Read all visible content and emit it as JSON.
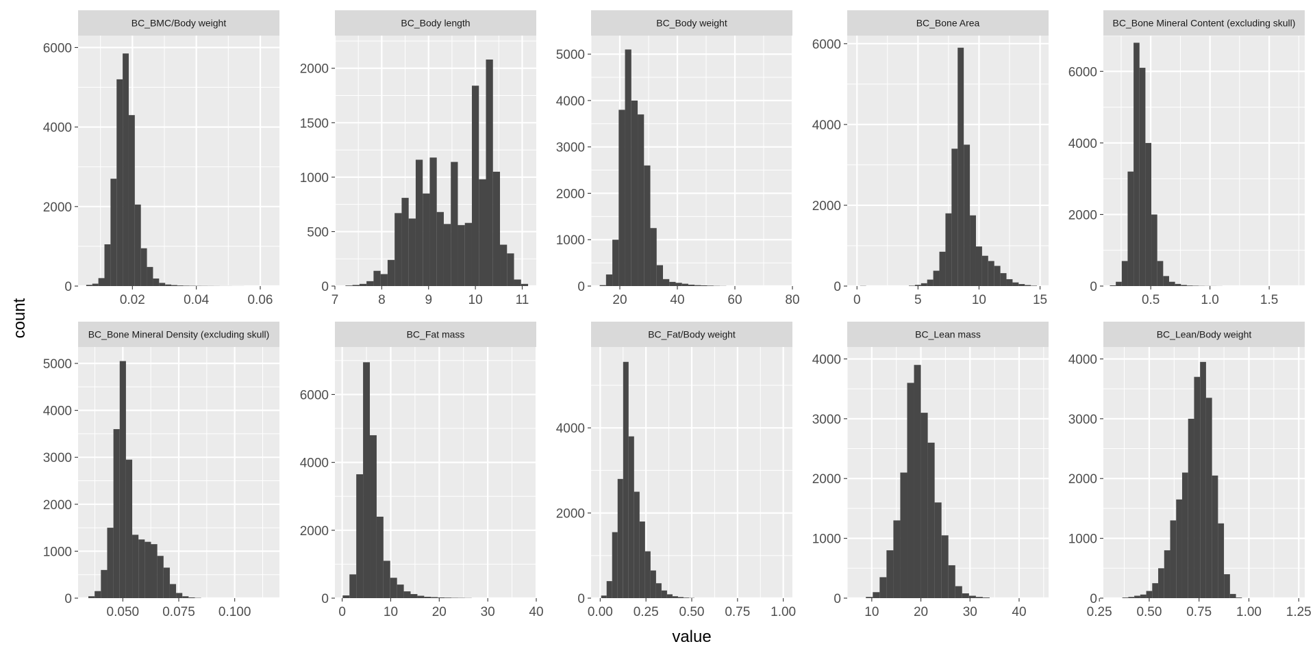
{
  "chart_data": {
    "type": "bar",
    "xlabel": "value",
    "ylabel": "count",
    "grid": true,
    "panels": [
      {
        "title": "BC_BMC/Body weight",
        "xlim": [
          0.003,
          0.066
        ],
        "ylim": [
          0,
          6300
        ],
        "xticks": [
          0.02,
          0.04,
          0.06
        ],
        "xtick_labels": [
          "0.02",
          "0.04",
          "0.06"
        ],
        "yticks": [
          0,
          2000,
          4000,
          6000
        ],
        "ytick_labels": [
          "0",
          "2000",
          "4000",
          "6000"
        ],
        "bins": [
          [
            0.0065,
            30
          ],
          [
            0.0084,
            60
          ],
          [
            0.0103,
            200
          ],
          [
            0.0122,
            1050
          ],
          [
            0.0141,
            2700
          ],
          [
            0.016,
            5200
          ],
          [
            0.0179,
            5850
          ],
          [
            0.0198,
            4300
          ],
          [
            0.0217,
            2050
          ],
          [
            0.0236,
            950
          ],
          [
            0.0255,
            480
          ],
          [
            0.0274,
            190
          ],
          [
            0.0293,
            80
          ],
          [
            0.0312,
            40
          ],
          [
            0.0331,
            25
          ],
          [
            0.035,
            15
          ],
          [
            0.0369,
            10
          ],
          [
            0.0388,
            8
          ],
          [
            0.0407,
            6
          ],
          [
            0.0426,
            5
          ],
          [
            0.0445,
            4
          ],
          [
            0.0464,
            3
          ],
          [
            0.0483,
            2
          ],
          [
            0.0502,
            2
          ],
          [
            0.0521,
            1
          ],
          [
            0.054,
            1
          ]
        ],
        "binwidth": 0.0019
      },
      {
        "title": "BC_Body length",
        "xlim": [
          7.0,
          11.3
        ],
        "ylim": [
          0,
          2300
        ],
        "xticks": [
          7,
          8,
          9,
          10,
          11
        ],
        "xtick_labels": [
          "7",
          "8",
          "9",
          "10",
          "11"
        ],
        "yticks": [
          0,
          500,
          1000,
          1500,
          2000
        ],
        "ytick_labels": [
          "0",
          "500",
          "1000",
          "1500",
          "2000"
        ],
        "bins": [
          [
            7.3,
            5
          ],
          [
            7.45,
            10
          ],
          [
            7.6,
            20
          ],
          [
            7.75,
            45
          ],
          [
            7.9,
            140
          ],
          [
            8.05,
            110
          ],
          [
            8.2,
            240
          ],
          [
            8.35,
            670
          ],
          [
            8.5,
            810
          ],
          [
            8.65,
            620
          ],
          [
            8.8,
            1160
          ],
          [
            8.95,
            850
          ],
          [
            9.1,
            1180
          ],
          [
            9.25,
            680
          ],
          [
            9.4,
            570
          ],
          [
            9.55,
            1140
          ],
          [
            9.7,
            560
          ],
          [
            9.85,
            580
          ],
          [
            10.0,
            1840
          ],
          [
            10.15,
            980
          ],
          [
            10.3,
            2080
          ],
          [
            10.45,
            1050
          ],
          [
            10.6,
            380
          ],
          [
            10.75,
            300
          ],
          [
            10.9,
            60
          ],
          [
            11.05,
            20
          ]
        ],
        "binwidth": 0.15
      },
      {
        "title": "BC_Body weight",
        "xlim": [
          10,
          80
        ],
        "ylim": [
          0,
          5400
        ],
        "xticks": [
          20,
          40,
          60,
          80
        ],
        "xtick_labels": [
          "20",
          "40",
          "60",
          "80"
        ],
        "yticks": [
          0,
          1000,
          2000,
          3000,
          4000,
          5000
        ],
        "ytick_labels": [
          "0",
          "1000",
          "2000",
          "3000",
          "4000",
          "5000"
        ],
        "bins": [
          [
            14.1,
            20
          ],
          [
            16.3,
            250
          ],
          [
            18.5,
            1000
          ],
          [
            20.7,
            3800
          ],
          [
            22.9,
            5100
          ],
          [
            25.1,
            4000
          ],
          [
            27.3,
            3700
          ],
          [
            29.5,
            2600
          ],
          [
            31.7,
            1250
          ],
          [
            33.9,
            450
          ],
          [
            36.1,
            150
          ],
          [
            38.3,
            90
          ],
          [
            40.5,
            70
          ],
          [
            42.7,
            50
          ],
          [
            44.9,
            30
          ],
          [
            47.1,
            20
          ],
          [
            49.3,
            15
          ],
          [
            51.5,
            10
          ],
          [
            53.7,
            5
          ],
          [
            55.9,
            3
          ]
        ],
        "binwidth": 2.2
      },
      {
        "title": "BC_Bone Area",
        "xlim": [
          -0.8,
          15.7
        ],
        "ylim": [
          0,
          6200
        ],
        "xticks": [
          0,
          5,
          10,
          15
        ],
        "xtick_labels": [
          "0",
          "5",
          "10",
          "15"
        ],
        "yticks": [
          0,
          2000,
          4000,
          6000
        ],
        "ytick_labels": [
          "0",
          "2000",
          "4000",
          "6000"
        ],
        "bins": [
          [
            0.5,
            5
          ],
          [
            4.5,
            10
          ],
          [
            5.0,
            30
          ],
          [
            5.5,
            70
          ],
          [
            6.0,
            160
          ],
          [
            6.5,
            380
          ],
          [
            7.0,
            850
          ],
          [
            7.5,
            1800
          ],
          [
            8.0,
            3400
          ],
          [
            8.5,
            5900
          ],
          [
            9.0,
            3500
          ],
          [
            9.5,
            1750
          ],
          [
            10.0,
            980
          ],
          [
            10.5,
            750
          ],
          [
            11.0,
            620
          ],
          [
            11.5,
            500
          ],
          [
            12.0,
            320
          ],
          [
            12.5,
            170
          ],
          [
            13.0,
            90
          ],
          [
            13.5,
            50
          ],
          [
            14.0,
            25
          ],
          [
            14.5,
            10
          ]
        ],
        "binwidth": 0.5
      },
      {
        "title": "BC_Bone Mineral Content (excluding skull)",
        "xlim": [
          0.1,
          1.8
        ],
        "ylim": [
          0,
          7000
        ],
        "xticks": [
          0.5,
          1.0,
          1.5
        ],
        "xtick_labels": [
          "0.5",
          "1.0",
          "1.5"
        ],
        "yticks": [
          0,
          2000,
          4000,
          6000
        ],
        "ytick_labels": [
          "0",
          "2000",
          "4000",
          "6000"
        ],
        "bins": [
          [
            0.18,
            20
          ],
          [
            0.23,
            120
          ],
          [
            0.28,
            700
          ],
          [
            0.33,
            3200
          ],
          [
            0.38,
            6800
          ],
          [
            0.43,
            6100
          ],
          [
            0.48,
            4000
          ],
          [
            0.53,
            2000
          ],
          [
            0.58,
            700
          ],
          [
            0.63,
            280
          ],
          [
            0.68,
            120
          ],
          [
            0.73,
            60
          ],
          [
            0.78,
            30
          ],
          [
            0.83,
            15
          ],
          [
            0.88,
            10
          ],
          [
            0.93,
            6
          ],
          [
            0.98,
            4
          ],
          [
            1.03,
            3
          ],
          [
            1.08,
            2
          ]
        ],
        "binwidth": 0.05
      },
      {
        "title": "BC_Bone Mineral Density (excluding skull)",
        "xlim": [
          0.03,
          0.12
        ],
        "ylim": [
          0,
          5350
        ],
        "xticks": [
          0.05,
          0.075,
          0.1
        ],
        "xtick_labels": [
          "0.050",
          "0.075",
          "0.100"
        ],
        "yticks": [
          0,
          1000,
          2000,
          3000,
          4000,
          5000
        ],
        "ytick_labels": [
          "0",
          "1000",
          "2000",
          "3000",
          "4000",
          "5000"
        ],
        "bins": [
          [
            0.036,
            40
          ],
          [
            0.0388,
            150
          ],
          [
            0.0416,
            600
          ],
          [
            0.0444,
            1500
          ],
          [
            0.0472,
            3600
          ],
          [
            0.05,
            5050
          ],
          [
            0.0528,
            2950
          ],
          [
            0.0556,
            1350
          ],
          [
            0.0584,
            1250
          ],
          [
            0.0612,
            1200
          ],
          [
            0.064,
            1150
          ],
          [
            0.0668,
            900
          ],
          [
            0.0696,
            650
          ],
          [
            0.0724,
            300
          ],
          [
            0.0752,
            110
          ],
          [
            0.078,
            40
          ],
          [
            0.0808,
            15
          ],
          [
            0.0836,
            6
          ]
        ],
        "binwidth": 0.0028
      },
      {
        "title": "BC_Fat mass",
        "xlim": [
          -1.5,
          40
        ],
        "ylim": [
          0,
          7400
        ],
        "xticks": [
          0,
          10,
          20,
          30,
          40
        ],
        "xtick_labels": [
          "0",
          "10",
          "20",
          "30",
          "40"
        ],
        "yticks": [
          0,
          2000,
          4000,
          6000
        ],
        "ytick_labels": [
          "0",
          "2000",
          "4000",
          "6000"
        ],
        "bins": [
          [
            0.8,
            80
          ],
          [
            2.2,
            700
          ],
          [
            3.6,
            3650
          ],
          [
            5.0,
            6950
          ],
          [
            6.4,
            4800
          ],
          [
            7.8,
            2400
          ],
          [
            9.2,
            1100
          ],
          [
            10.6,
            600
          ],
          [
            12.0,
            400
          ],
          [
            13.4,
            200
          ],
          [
            14.8,
            120
          ],
          [
            16.2,
            70
          ],
          [
            17.6,
            40
          ],
          [
            19.0,
            30
          ],
          [
            20.4,
            20
          ],
          [
            21.8,
            15
          ],
          [
            23.2,
            10
          ],
          [
            24.6,
            8
          ],
          [
            26.0,
            5
          ]
        ],
        "binwidth": 1.4
      },
      {
        "title": "BC_Fat/Body weight",
        "xlim": [
          -0.05,
          1.05
        ],
        "ylim": [
          0,
          5900
        ],
        "xticks": [
          0.0,
          0.25,
          0.5,
          0.75,
          1.0
        ],
        "xtick_labels": [
          "0.00",
          "0.25",
          "0.50",
          "0.75",
          "1.00"
        ],
        "yticks": [
          0,
          2000,
          4000
        ],
        "ytick_labels": [
          "0",
          "2000",
          "4000"
        ],
        "bins": [
          [
            0.02,
            60
          ],
          [
            0.05,
            400
          ],
          [
            0.08,
            1550
          ],
          [
            0.11,
            2800
          ],
          [
            0.14,
            5550
          ],
          [
            0.17,
            3800
          ],
          [
            0.2,
            2500
          ],
          [
            0.23,
            1800
          ],
          [
            0.26,
            1100
          ],
          [
            0.29,
            650
          ],
          [
            0.32,
            350
          ],
          [
            0.35,
            180
          ],
          [
            0.38,
            90
          ],
          [
            0.41,
            45
          ],
          [
            0.44,
            25
          ],
          [
            0.47,
            12
          ],
          [
            0.5,
            6
          ]
        ],
        "binwidth": 0.03
      },
      {
        "title": "BC_Lean mass",
        "xlim": [
          5,
          46
        ],
        "ylim": [
          0,
          4200
        ],
        "xticks": [
          10,
          20,
          30,
          40
        ],
        "xtick_labels": [
          "10",
          "20",
          "30",
          "40"
        ],
        "yticks": [
          0,
          1000,
          2000,
          3000,
          4000
        ],
        "ytick_labels": [
          "0",
          "1000",
          "2000",
          "3000",
          "4000"
        ],
        "bins": [
          [
            9.5,
            20
          ],
          [
            10.9,
            100
          ],
          [
            12.3,
            350
          ],
          [
            13.7,
            800
          ],
          [
            15.1,
            1300
          ],
          [
            16.5,
            2100
          ],
          [
            17.9,
            3600
          ],
          [
            19.3,
            3900
          ],
          [
            20.7,
            3100
          ],
          [
            22.1,
            2600
          ],
          [
            23.5,
            1600
          ],
          [
            24.9,
            1050
          ],
          [
            26.3,
            550
          ],
          [
            27.7,
            200
          ],
          [
            29.1,
            80
          ],
          [
            30.5,
            40
          ],
          [
            31.9,
            20
          ],
          [
            33.3,
            10
          ]
        ],
        "binwidth": 1.4
      },
      {
        "title": "BC_Lean/Body weight",
        "xlim": [
          0.27,
          1.28
        ],
        "ylim": [
          0,
          4200
        ],
        "xticks": [
          0.25,
          0.5,
          0.75,
          1.0,
          1.25
        ],
        "xtick_labels": [
          "0.25",
          "0.50",
          "0.75",
          "1.00",
          "1.25"
        ],
        "yticks": [
          0,
          1000,
          2000,
          3000,
          4000
        ],
        "ytick_labels": [
          "0",
          "1000",
          "2000",
          "3000",
          "4000"
        ],
        "bins": [
          [
            0.38,
            10
          ],
          [
            0.41,
            20
          ],
          [
            0.44,
            40
          ],
          [
            0.47,
            60
          ],
          [
            0.5,
            120
          ],
          [
            0.53,
            250
          ],
          [
            0.56,
            500
          ],
          [
            0.59,
            800
          ],
          [
            0.62,
            1300
          ],
          [
            0.65,
            1650
          ],
          [
            0.68,
            2100
          ],
          [
            0.71,
            3000
          ],
          [
            0.74,
            3700
          ],
          [
            0.77,
            3950
          ],
          [
            0.8,
            3350
          ],
          [
            0.83,
            2050
          ],
          [
            0.86,
            1250
          ],
          [
            0.89,
            400
          ],
          [
            0.92,
            70
          ],
          [
            0.95,
            10
          ]
        ],
        "binwidth": 0.03
      }
    ]
  }
}
